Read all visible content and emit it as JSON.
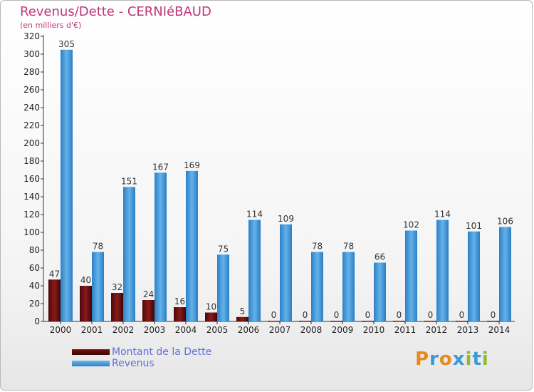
{
  "title": "Revenus/Dette - CERNIéBAUD",
  "subtitle": "(en milliers d'€)",
  "legend": {
    "debt_label": "Montant de la Dette",
    "revenue_label": "Revenus"
  },
  "logo_text": "Proxiti",
  "colors": {
    "debt": "#6e0f0f",
    "revenue": "#4ea3e0",
    "title": "#c0347a",
    "legend_text": "#5f6fd6"
  },
  "chart_data": {
    "type": "bar",
    "categories": [
      "2000",
      "2001",
      "2002",
      "2003",
      "2004",
      "2005",
      "2006",
      "2007",
      "2008",
      "2009",
      "2010",
      "2011",
      "2012",
      "2013",
      "2014"
    ],
    "series": [
      {
        "name": "Montant de la Dette",
        "values": [
          47,
          40,
          32,
          24,
          16,
          10,
          5,
          0,
          0,
          0,
          0,
          0,
          0,
          0,
          0
        ]
      },
      {
        "name": "Revenus",
        "values": [
          305,
          78,
          151,
          167,
          169,
          75,
          114,
          109,
          78,
          78,
          66,
          102,
          114,
          101,
          106
        ]
      }
    ],
    "ylim": [
      0,
      320
    ],
    "yticks": [
      0,
      20,
      40,
      60,
      80,
      100,
      120,
      140,
      160,
      180,
      200,
      220,
      240,
      260,
      280,
      300,
      320
    ],
    "grid": false,
    "legend_position": "bottom-left"
  }
}
